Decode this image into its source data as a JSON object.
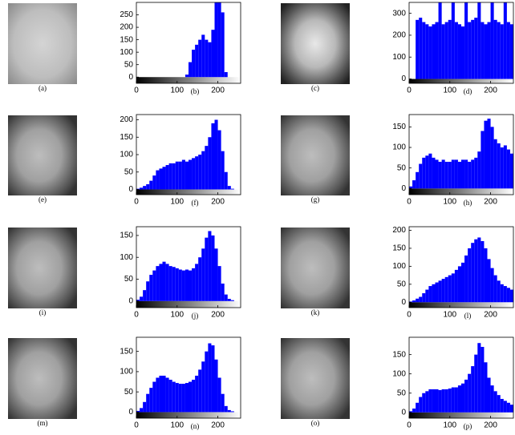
{
  "images": [
    {
      "caption": "(a)"
    },
    {
      "caption": "(c)"
    },
    {
      "caption": "(e)"
    },
    {
      "caption": "(g)"
    },
    {
      "caption": "(i)"
    },
    {
      "caption": "(k)"
    },
    {
      "caption": "(m)"
    },
    {
      "caption": "(o)"
    }
  ],
  "chart_data": [
    {
      "type": "histogram",
      "caption": "(b)",
      "color": "#0000ff",
      "bins": [
        0,
        8,
        16,
        24,
        32,
        40,
        48,
        56,
        64,
        72,
        80,
        88,
        96,
        104,
        112,
        120,
        128,
        136,
        144,
        152,
        160,
        168,
        176,
        184,
        192,
        200,
        208,
        216,
        224,
        232,
        240,
        248,
        256
      ],
      "values": [
        0,
        0,
        0,
        0,
        0,
        0,
        0,
        0,
        0,
        0,
        0,
        0,
        0,
        0,
        0,
        10,
        60,
        110,
        130,
        150,
        170,
        150,
        140,
        190,
        300,
        300,
        260,
        20,
        0,
        0,
        0,
        0
      ],
      "xlim": [
        0,
        256
      ],
      "xticks": [
        0,
        100,
        200
      ],
      "ylim": [
        -25,
        300
      ],
      "yticks": [
        0,
        50,
        100,
        150,
        200,
        250
      ]
    },
    {
      "type": "histogram",
      "caption": "(d)",
      "color": "#0000ff",
      "bins": [
        0,
        8,
        16,
        24,
        32,
        40,
        48,
        56,
        64,
        72,
        80,
        88,
        96,
        104,
        112,
        120,
        128,
        136,
        144,
        152,
        160,
        168,
        176,
        184,
        192,
        200,
        208,
        216,
        224,
        232,
        240,
        248,
        256
      ],
      "values": [
        0,
        0,
        270,
        280,
        260,
        250,
        240,
        250,
        260,
        350,
        250,
        260,
        270,
        350,
        260,
        250,
        240,
        350,
        260,
        270,
        280,
        350,
        260,
        250,
        260,
        350,
        270,
        260,
        250,
        350,
        260,
        250
      ],
      "xlim": [
        0,
        256
      ],
      "xticks": [
        0,
        100,
        200
      ],
      "ylim": [
        -20,
        350
      ],
      "yticks": [
        0,
        100,
        200,
        300
      ]
    },
    {
      "type": "histogram",
      "caption": "(f)",
      "color": "#0000ff",
      "bins": [
        0,
        8,
        16,
        24,
        32,
        40,
        48,
        56,
        64,
        72,
        80,
        88,
        96,
        104,
        112,
        120,
        128,
        136,
        144,
        152,
        160,
        168,
        176,
        184,
        192,
        200,
        208,
        216,
        224,
        232,
        240,
        248,
        256
      ],
      "values": [
        2,
        5,
        10,
        15,
        25,
        40,
        55,
        60,
        65,
        70,
        75,
        75,
        80,
        80,
        85,
        80,
        85,
        90,
        95,
        100,
        110,
        125,
        150,
        190,
        200,
        170,
        110,
        50,
        10,
        2,
        0,
        0
      ],
      "xlim": [
        0,
        256
      ],
      "xticks": [
        0,
        100,
        200
      ],
      "ylim": [
        -15,
        215
      ],
      "yticks": [
        0,
        50,
        100,
        150,
        200
      ]
    },
    {
      "type": "histogram",
      "caption": "(h)",
      "color": "#0000ff",
      "bins": [
        0,
        8,
        16,
        24,
        32,
        40,
        48,
        56,
        64,
        72,
        80,
        88,
        96,
        104,
        112,
        120,
        128,
        136,
        144,
        152,
        160,
        168,
        176,
        184,
        192,
        200,
        208,
        216,
        224,
        232,
        240,
        248,
        256
      ],
      "values": [
        5,
        20,
        40,
        60,
        75,
        80,
        85,
        75,
        70,
        65,
        70,
        65,
        65,
        70,
        70,
        65,
        70,
        70,
        65,
        70,
        75,
        90,
        140,
        165,
        170,
        150,
        120,
        110,
        100,
        105,
        95,
        85
      ],
      "xlim": [
        0,
        256
      ],
      "xticks": [
        0,
        100,
        200
      ],
      "ylim": [
        -15,
        180
      ],
      "yticks": [
        0,
        50,
        100,
        150
      ]
    },
    {
      "type": "histogram",
      "caption": "(j)",
      "color": "#0000ff",
      "bins": [
        0,
        8,
        16,
        24,
        32,
        40,
        48,
        56,
        64,
        72,
        80,
        88,
        96,
        104,
        112,
        120,
        128,
        136,
        144,
        152,
        160,
        168,
        176,
        184,
        192,
        200,
        208,
        216,
        224,
        232,
        240,
        248,
        256
      ],
      "values": [
        3,
        10,
        25,
        45,
        60,
        70,
        80,
        85,
        90,
        85,
        80,
        78,
        75,
        72,
        70,
        72,
        70,
        75,
        85,
        100,
        120,
        145,
        160,
        150,
        120,
        80,
        40,
        15,
        5,
        2,
        0,
        0
      ],
      "xlim": [
        0,
        256
      ],
      "xticks": [
        0,
        100,
        200
      ],
      "ylim": [
        -15,
        170
      ],
      "yticks": [
        0,
        50,
        100,
        150
      ]
    },
    {
      "type": "histogram",
      "caption": "(l)",
      "color": "#0000ff",
      "bins": [
        0,
        8,
        16,
        24,
        32,
        40,
        48,
        56,
        64,
        72,
        80,
        88,
        96,
        104,
        112,
        120,
        128,
        136,
        144,
        152,
        160,
        168,
        176,
        184,
        192,
        200,
        208,
        216,
        224,
        232,
        240,
        248,
        256
      ],
      "values": [
        2,
        5,
        10,
        15,
        25,
        35,
        45,
        50,
        55,
        60,
        65,
        70,
        75,
        80,
        90,
        100,
        110,
        130,
        150,
        165,
        175,
        180,
        170,
        150,
        120,
        95,
        75,
        60,
        50,
        45,
        40,
        35
      ],
      "xlim": [
        0,
        256
      ],
      "xticks": [
        0,
        100,
        200
      ],
      "ylim": [
        -15,
        210
      ],
      "yticks": [
        0,
        50,
        100,
        150,
        200
      ]
    },
    {
      "type": "histogram",
      "caption": "(n)",
      "color": "#0000ff",
      "bins": [
        0,
        8,
        16,
        24,
        32,
        40,
        48,
        56,
        64,
        72,
        80,
        88,
        96,
        104,
        112,
        120,
        128,
        136,
        144,
        152,
        160,
        168,
        176,
        184,
        192,
        200,
        208,
        216,
        224,
        232,
        240,
        248,
        256
      ],
      "values": [
        3,
        10,
        25,
        45,
        60,
        75,
        85,
        90,
        90,
        85,
        80,
        75,
        72,
        70,
        70,
        72,
        75,
        80,
        90,
        105,
        125,
        150,
        170,
        165,
        130,
        85,
        45,
        15,
        5,
        2,
        0,
        0
      ],
      "xlim": [
        0,
        256
      ],
      "xticks": [
        0,
        100,
        200
      ],
      "ylim": [
        -15,
        185
      ],
      "yticks": [
        0,
        50,
        100,
        150
      ]
    },
    {
      "type": "histogram",
      "caption": "(p)",
      "color": "#0000ff",
      "bins": [
        0,
        8,
        16,
        24,
        32,
        40,
        48,
        56,
        64,
        72,
        80,
        88,
        96,
        104,
        112,
        120,
        128,
        136,
        144,
        152,
        160,
        168,
        176,
        184,
        192,
        200,
        208,
        216,
        224,
        232,
        240,
        248,
        256
      ],
      "values": [
        3,
        10,
        25,
        40,
        50,
        55,
        60,
        60,
        60,
        58,
        60,
        60,
        62,
        65,
        65,
        70,
        75,
        85,
        100,
        120,
        150,
        180,
        170,
        130,
        90,
        70,
        55,
        45,
        35,
        30,
        25,
        20
      ],
      "xlim": [
        0,
        256
      ],
      "xticks": [
        0,
        100,
        200
      ],
      "ylim": [
        -15,
        195
      ],
      "yticks": [
        0,
        50,
        100,
        150
      ]
    }
  ]
}
